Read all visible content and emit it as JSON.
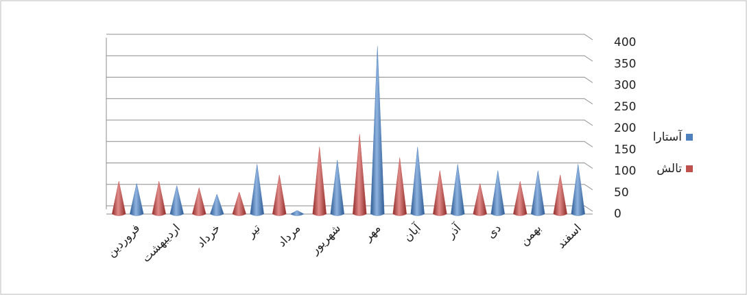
{
  "chart_data": {
    "type": "cone",
    "categories": [
      "فروردین",
      "اردیبهشت",
      "خرداد",
      "تیر",
      "مرداد",
      "شهریور",
      "مهر",
      "آبان",
      "آذر",
      "دی",
      "بهمن",
      "اسفند"
    ],
    "series": [
      {
        "name": "آستارا",
        "color": "#4f81bd",
        "values": [
          65,
          60,
          40,
          110,
          2,
          120,
          385,
          150,
          110,
          95,
          95,
          110
        ]
      },
      {
        "name": "تالش",
        "color": "#c0504d",
        "values": [
          70,
          70,
          55,
          45,
          85,
          150,
          180,
          125,
          95,
          65,
          70,
          85
        ]
      }
    ],
    "ylim": [
      0,
      400
    ],
    "yticks": [
      0,
      50,
      100,
      150,
      200,
      250,
      300,
      350,
      400
    ],
    "grid": true
  }
}
